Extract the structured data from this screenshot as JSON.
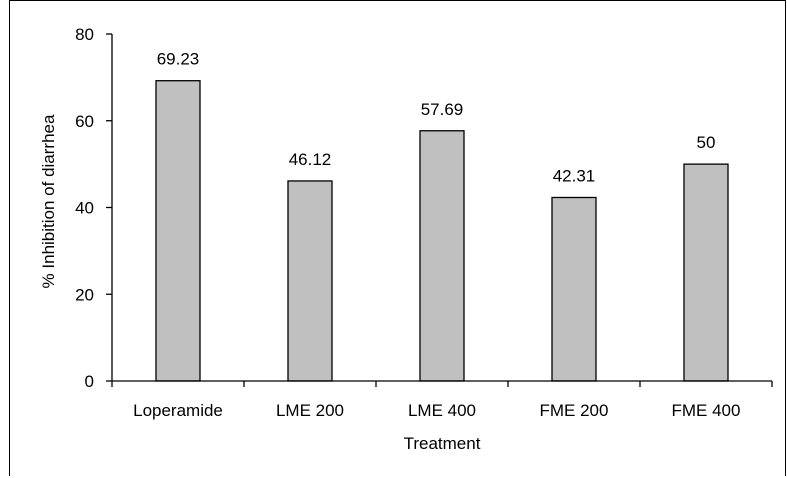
{
  "chart_data": {
    "type": "bar",
    "title": "",
    "xlabel": "Treatment",
    "ylabel": "% Inhibition of diarrhea",
    "categories": [
      "Loperamide",
      "LME 200",
      "LME 400",
      "FME 200",
      "FME 400"
    ],
    "values": [
      69.23,
      46.12,
      57.69,
      42.31,
      50
    ],
    "data_labels": [
      "69.23",
      "46.12",
      "57.69",
      "42.31",
      "50"
    ],
    "ylim": [
      0,
      80
    ],
    "yticks": [
      0,
      20,
      40,
      60,
      80
    ],
    "ytick_labels": [
      "0",
      "20",
      "40",
      "60",
      "80"
    ],
    "grid": false,
    "legend": "none",
    "colors": {
      "bar_fill": "#c0c0c0",
      "bar_stroke": "#000000",
      "axis": "#000000",
      "text": "#000000"
    }
  }
}
